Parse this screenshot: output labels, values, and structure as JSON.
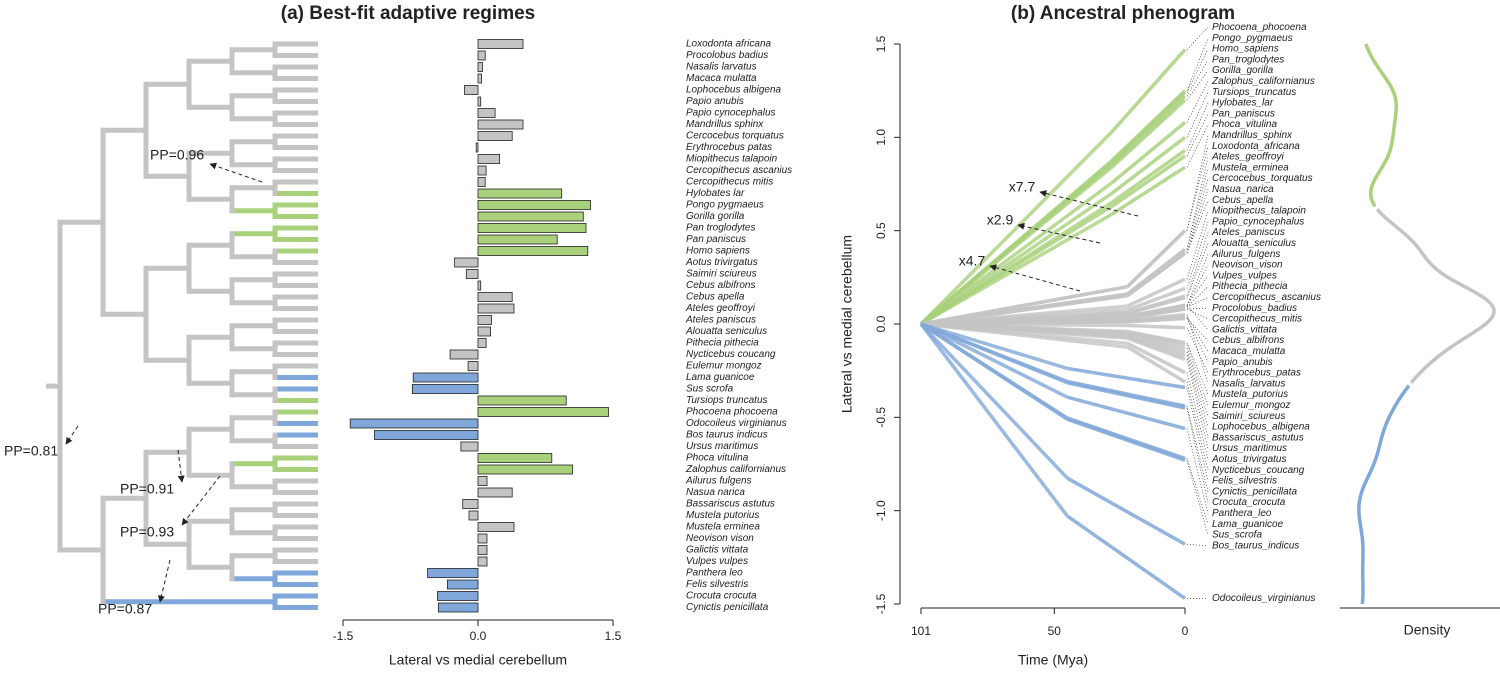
{
  "chart_data": [
    {
      "type": "barh",
      "title": "(a) Best-fit adaptive regimes",
      "categories": [
        "Loxodonta africana",
        "Procolobus badius",
        "Nasalis larvatus",
        "Macaca mulatta",
        "Lophocebus albigena",
        "Papio anubis",
        "Papio cynocephalus",
        "Mandrillus sphinx",
        "Cercocebus torquatus",
        "Erythrocebus patas",
        "Miopithecus talapoin",
        "Cercopithecus ascanius",
        "Cercopithecus mitis",
        "Hylobates lar",
        "Pongo pygmaeus",
        "Gorilla gorilla",
        "Pan troglodytes",
        "Pan paniscus",
        "Homo sapiens",
        "Aotus trivirgatus",
        "Saimiri sciureus",
        "Cebus albifrons",
        "Cebus apella",
        "Ateles geoffroyi",
        "Ateles paniscus",
        "Alouatta seniculus",
        "Pithecia pithecia",
        "Nycticebus coucang",
        "Eulemur mongoz",
        "Lama guanicoe",
        "Sus scrofa",
        "Tursiops truncatus",
        "Phocoena phocoena",
        "Odocoileus virginianus",
        "Bos taurus indicus",
        "Ursus maritimus",
        "Phoca vitulina",
        "Zalophus californianus",
        "Ailurus fulgens",
        "Nasua narica",
        "Bassariscus astutus",
        "Mustela putorius",
        "Mustela erminea",
        "Neovison vison",
        "Galictis vittata",
        "Vulpes vulpes",
        "Panthera leo",
        "Felis silvestris",
        "Crocuta crocuta",
        "Cynictis penicillata"
      ],
      "values": [
        0.5,
        0.08,
        0.05,
        0.04,
        -0.15,
        0.03,
        0.19,
        0.5,
        0.38,
        -0.02,
        0.24,
        0.09,
        0.08,
        0.93,
        1.25,
        1.17,
        1.2,
        0.88,
        1.22,
        -0.26,
        -0.13,
        0.03,
        0.38,
        0.4,
        0.15,
        0.14,
        0.09,
        -0.31,
        -0.11,
        -0.72,
        -0.73,
        0.98,
        1.45,
        -1.42,
        -1.15,
        -0.19,
        0.82,
        1.05,
        0.1,
        0.38,
        -0.17,
        -0.1,
        0.4,
        0.1,
        0.1,
        0.1,
        -0.56,
        -0.34,
        -0.45,
        -0.44
      ],
      "colors": [
        "#c4c4c4",
        "#c4c4c4",
        "#c4c4c4",
        "#c4c4c4",
        "#c4c4c4",
        "#c4c4c4",
        "#c4c4c4",
        "#c4c4c4",
        "#c4c4c4",
        "#c4c4c4",
        "#c4c4c4",
        "#c4c4c4",
        "#c4c4c4",
        "#a9d17c",
        "#a9d17c",
        "#a9d17c",
        "#a9d17c",
        "#a9d17c",
        "#a9d17c",
        "#c4c4c4",
        "#c4c4c4",
        "#c4c4c4",
        "#c4c4c4",
        "#c4c4c4",
        "#c4c4c4",
        "#c4c4c4",
        "#c4c4c4",
        "#c4c4c4",
        "#c4c4c4",
        "#7fa7d9",
        "#7fa7d9",
        "#a9d17c",
        "#a9d17c",
        "#7fa7d9",
        "#7fa7d9",
        "#c4c4c4",
        "#a9d17c",
        "#a9d17c",
        "#c4c4c4",
        "#c4c4c4",
        "#c4c4c4",
        "#c4c4c4",
        "#c4c4c4",
        "#c4c4c4",
        "#c4c4c4",
        "#c4c4c4",
        "#7fa7d9",
        "#7fa7d9",
        "#7fa7d9",
        "#7fa7d9"
      ],
      "xlim": [
        -1.5,
        1.5
      ],
      "xticks": [
        -1.5,
        {
          "value": 0,
          "label": "0.0"
        },
        1.5
      ],
      "xlabel": "Lateral vs medial cerebellum",
      "annotations": [
        "PP=0.96",
        "PP=0.81",
        "PP=0.91",
        "PP=0.93",
        "PP=0.87"
      ]
    },
    {
      "type": "phenogram",
      "title": "(b) Ancestral phenogram",
      "labels": [
        "Phocoena_phocoena",
        "Pongo_pygmaeus",
        "Homo_sapiens",
        "Pan_troglodytes",
        "Gorilla_gorilla",
        "Zalophus_californianus",
        "Tursiops_truncatus",
        "Hylobates_lar",
        "Pan_paniscus",
        "Phoca_vitulina",
        "Mandrillus_sphinx",
        "Loxodonta_africana",
        "Ateles_geoffroyi",
        "Mustela_erminea",
        "Cercocebus_torquatus",
        "Nasua_narica",
        "Cebus_apella",
        "Miopithecus_talapoin",
        "Papio_cynocephalus",
        "Ateles_paniscus",
        "Alouatta_seniculus",
        "Ailurus_fulgens",
        "Neovison_vison",
        "Vulpes_vulpes",
        "Pithecia_pithecia",
        "Cercopithecus_ascanius",
        "Procolobus_badius",
        "Cercopithecus_mitis",
        "Galictis_vittata",
        "Cebus_albifrons",
        "Macaca_mulatta",
        "Papio_anubis",
        "Erythrocebus_patas",
        "Nasalis_larvatus",
        "Mustela_putorius",
        "Eulemur_mongoz",
        "Saimiri_sciureus",
        "Lophocebus_albigena",
        "Bassariscus_astutus",
        "Ursus_maritimus",
        "Aotus_trivirgatus",
        "Nycticebus_coucang",
        "Felis_silvestris",
        "Cynictis_penicillata",
        "Crocuta_crocuta",
        "Panthera_leo",
        "Lama_guanicoe",
        "Sus_scrofa",
        "Bos_taurus_indicus",
        "Odocoileus_virginianus"
      ],
      "values": [
        1.47,
        1.25,
        1.24,
        1.22,
        1.2,
        1.08,
        1.0,
        0.93,
        0.9,
        0.84,
        0.5,
        0.5,
        0.4,
        0.4,
        0.38,
        0.38,
        0.38,
        0.24,
        0.19,
        0.15,
        0.14,
        0.1,
        0.1,
        0.1,
        0.09,
        0.09,
        0.08,
        0.08,
        0.1,
        0.03,
        0.04,
        0.03,
        -0.02,
        0.05,
        -0.1,
        -0.11,
        -0.13,
        -0.15,
        -0.17,
        -0.19,
        -0.26,
        -0.31,
        -0.34,
        -0.44,
        -0.45,
        -0.56,
        -0.72,
        -0.73,
        -1.18,
        -1.47
      ],
      "colors": [
        "#a9d17c",
        "#a9d17c",
        "#a9d17c",
        "#a9d17c",
        "#a9d17c",
        "#a9d17c",
        "#a9d17c",
        "#a9d17c",
        "#a9d17c",
        "#a9d17c",
        "#c4c4c4",
        "#c4c4c4",
        "#c4c4c4",
        "#c4c4c4",
        "#c4c4c4",
        "#c4c4c4",
        "#c4c4c4",
        "#c4c4c4",
        "#c4c4c4",
        "#c4c4c4",
        "#c4c4c4",
        "#c4c4c4",
        "#c4c4c4",
        "#c4c4c4",
        "#c4c4c4",
        "#c4c4c4",
        "#c4c4c4",
        "#c4c4c4",
        "#c4c4c4",
        "#c4c4c4",
        "#c4c4c4",
        "#c4c4c4",
        "#c4c4c4",
        "#c4c4c4",
        "#c4c4c4",
        "#c4c4c4",
        "#c4c4c4",
        "#c4c4c4",
        "#c4c4c4",
        "#c4c4c4",
        "#c4c4c4",
        "#c4c4c4",
        "#7fa7d9",
        "#7fa7d9",
        "#7fa7d9",
        "#7fa7d9",
        "#7fa7d9",
        "#7fa7d9",
        "#7fa7d9",
        "#7fa7d9"
      ],
      "xlim": [
        101,
        0
      ],
      "xticks": [
        101,
        50,
        0
      ],
      "ylim": [
        -1.5,
        1.5
      ],
      "yticks": [
        -1.5,
        {
          "value": -1,
          "label": "-1.0"
        },
        -0.5,
        {
          "value": 0,
          "label": "0.0"
        },
        0.5,
        {
          "value": 1,
          "label": "1.0"
        },
        1.5
      ],
      "xlabel": "Time (Mya)",
      "ylabel": "Lateral vs medial cerebellum",
      "density_label": "Density",
      "annotations": [
        "x7.7",
        "x2.9",
        "x4.7"
      ]
    }
  ]
}
